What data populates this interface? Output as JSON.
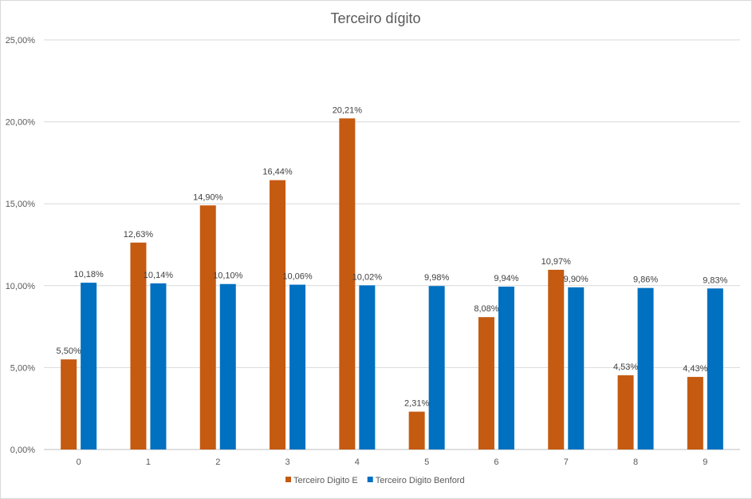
{
  "chart_data": {
    "type": "bar",
    "title": "Terceiro dígito",
    "xlabel": "",
    "ylabel": "",
    "categories": [
      "0",
      "1",
      "2",
      "3",
      "4",
      "5",
      "6",
      "7",
      "8",
      "9"
    ],
    "ylim": [
      0,
      25
    ],
    "y_ticks": [
      0,
      5,
      10,
      15,
      20,
      25
    ],
    "y_tick_labels": [
      "0,00%",
      "5,00%",
      "10,00%",
      "15,00%",
      "20,00%",
      "25,00%"
    ],
    "grid": true,
    "legend_position": "bottom",
    "series": [
      {
        "name": "Terceiro Digito E",
        "color": "#c55a11",
        "values": [
          5.5,
          12.63,
          14.9,
          16.44,
          20.21,
          2.31,
          8.08,
          10.97,
          4.53,
          4.43
        ],
        "labels": [
          "5,50%",
          "12,63%",
          "14,90%",
          "16,44%",
          "20,21%",
          "2,31%",
          "8,08%",
          "10,97%",
          "4,53%",
          "4,43%"
        ]
      },
      {
        "name": "Terceiro Digito Benford",
        "color": "#0070c0",
        "values": [
          10.18,
          10.14,
          10.1,
          10.06,
          10.02,
          9.98,
          9.94,
          9.9,
          9.86,
          9.83
        ],
        "labels": [
          "10,18%",
          "10,14%",
          "10,10%",
          "10,06%",
          "10,02%",
          "9,98%",
          "9,94%",
          "9,90%",
          "9,86%",
          "9,83%"
        ]
      }
    ]
  }
}
